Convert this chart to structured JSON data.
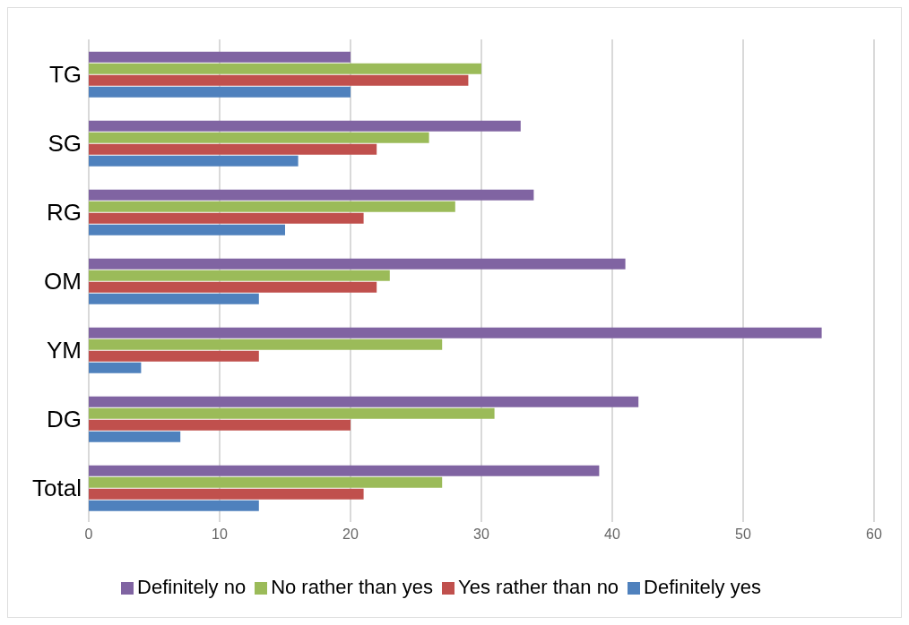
{
  "chart_data": {
    "type": "bar",
    "orientation": "horizontal",
    "categories": [
      "TG",
      "SG",
      "RG",
      "OM",
      "YM",
      "DG",
      "Total"
    ],
    "series": [
      {
        "name": "Definitely no",
        "color": "#8064a2",
        "values": [
          20,
          33,
          34,
          41,
          56,
          42,
          39
        ]
      },
      {
        "name": "No rather than yes",
        "color": "#9bbb59",
        "values": [
          30,
          26,
          28,
          23,
          27,
          31,
          27
        ]
      },
      {
        "name": "Yes rather than no",
        "color": "#c0504d",
        "values": [
          29,
          22,
          21,
          22,
          13,
          20,
          21
        ]
      },
      {
        "name": "Definitely yes",
        "color": "#4f81bd",
        "values": [
          20,
          16,
          15,
          13,
          4,
          7,
          13
        ]
      }
    ],
    "xlim": [
      0,
      60
    ],
    "xticks": [
      0,
      10,
      20,
      30,
      40,
      50,
      60
    ],
    "grid": "x",
    "legend": "bottom"
  }
}
